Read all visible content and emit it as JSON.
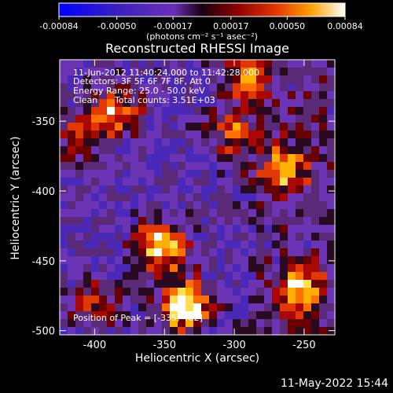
{
  "chart_data": {
    "type": "heatmap",
    "title": "Reconstructed RHESSI Image",
    "xlabel": "Heliocentric X (arcsec)",
    "ylabel": "Heliocentric Y (arcsec)",
    "xlim": [
      -425,
      -228
    ],
    "ylim": [
      -503,
      -306
    ],
    "x_ticks": [
      -400,
      -350,
      -300,
      -250
    ],
    "y_ticks": [
      -350,
      -400,
      -450,
      -500
    ],
    "colorbar": {
      "ticks": [
        "-0.00084",
        "-0.00050",
        "-0.00017",
        "0.00017",
        "0.00050",
        "0.00084"
      ],
      "range": [
        -0.00084,
        0.00084
      ],
      "unit_text": "(photons cm⁻² s⁻¹ asec⁻²)"
    },
    "annotations": {
      "time": "11-Jun-2012 11:40:24.000 to 11:42:28.000",
      "detectors": "Detectors: 3F 5F 6F 7F 8F, Att 0",
      "energy": "Energy Range: 25.0 - 50.0 keV",
      "clean_label": "Clean",
      "counts": "Total counts: 3.51E+03",
      "peak": "Position of Peak = [-335,-482]"
    },
    "peak_position": [
      -335,
      -482
    ],
    "hot_sources": [
      {
        "x": -335,
        "y": -482,
        "level": 1.0
      },
      {
        "x": -352,
        "y": -440,
        "level": 0.85
      },
      {
        "x": -385,
        "y": -343,
        "level": 0.6
      },
      {
        "x": -290,
        "y": -318,
        "level": 0.55
      },
      {
        "x": -255,
        "y": -470,
        "level": 0.7
      },
      {
        "x": -265,
        "y": -385,
        "level": 0.6
      },
      {
        "x": -300,
        "y": -360,
        "level": 0.5
      },
      {
        "x": -410,
        "y": -360,
        "level": 0.45
      },
      {
        "x": -400,
        "y": -480,
        "level": 0.45
      }
    ]
  },
  "footer": {
    "timestamp": "11-May-2022 15:44"
  }
}
